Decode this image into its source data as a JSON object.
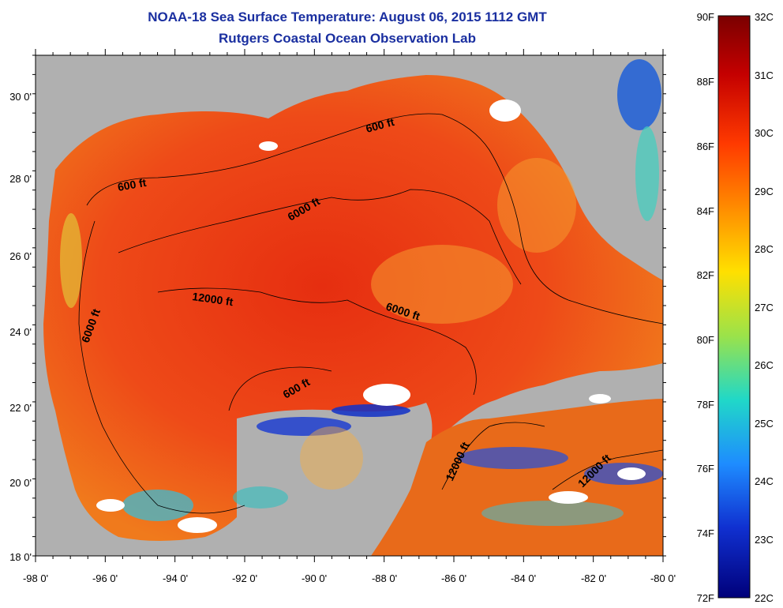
{
  "title": "NOAA-18 Sea Surface Temperature:  August 06, 2015 1112 GMT",
  "subtitle": "Rutgers Coastal Ocean Observation Lab",
  "map": {
    "lon_labels": [
      "-98 0'",
      "-96 0'",
      "-94 0'",
      "-92 0'",
      "-90 0'",
      "-88 0'",
      "-86 0'",
      "-84 0'",
      "-82 0'",
      "-80 0'"
    ],
    "lat_labels": [
      "30 0'",
      "28 0'",
      "26 0'",
      "24 0'",
      "22 0'",
      "20 0'",
      "18 0'"
    ],
    "contour_labels": [
      "600 ft",
      "600 ft",
      "6000 ft",
      "12000 ft",
      "6000 ft",
      "6000 ft",
      "600 ft",
      "12000 ft",
      "12000 ft"
    ],
    "colors": {
      "land": "#b0b0b0",
      "warm": "#e8341a",
      "cool": "#1e5fd8",
      "cloud": "#ffffff"
    }
  },
  "colorbar": {
    "f_labels": [
      "90F",
      "88F",
      "86F",
      "84F",
      "82F",
      "80F",
      "78F",
      "76F",
      "74F",
      "72F"
    ],
    "c_labels": [
      "32C",
      "31C",
      "30C",
      "29C",
      "28C",
      "27C",
      "26C",
      "25C",
      "24C",
      "23C",
      "22C"
    ],
    "f_range": [
      72,
      90
    ],
    "c_range": [
      22,
      32
    ]
  }
}
